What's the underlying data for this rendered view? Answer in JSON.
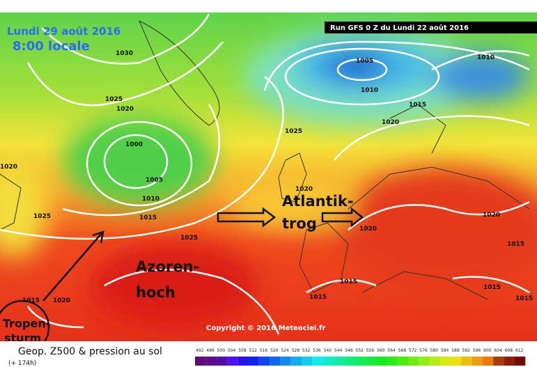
{
  "header": {
    "date": "Lundi 29 août 2016",
    "time": "8:00 locale",
    "run": "Run GFS 0 Z du Lundi 22 août 2016"
  },
  "isobars": [
    "1030",
    "1025",
    "1020",
    "1000",
    "1005",
    "1010",
    "1015",
    "1025",
    "1020",
    "1025",
    "1015",
    "1020",
    "1005",
    "1010",
    "1010",
    "1015",
    "1020",
    "1025",
    "1020",
    "1020",
    "1020",
    "1015",
    "1015",
    "1015",
    "1015",
    "1015"
  ],
  "annotations": {
    "trough_1": "Atlantik-",
    "trough_2": "trog",
    "high_1": "Azoren-",
    "high_2": "hoch",
    "storm_1": "Tropen-",
    "storm_2": "sturm"
  },
  "copyright": "Copyright © 2016 Meteociel.fr",
  "legend": {
    "title": "Geop. Z500 & pression au sol",
    "lead": "(+ 174h)",
    "scale": [
      "492",
      "496",
      "500",
      "504",
      "508",
      "512",
      "516",
      "520",
      "524",
      "528",
      "532",
      "536",
      "540",
      "544",
      "548",
      "552",
      "556",
      "560",
      "564",
      "568",
      "572",
      "576",
      "580",
      "584",
      "588",
      "592",
      "596",
      "600",
      "604",
      "608",
      "612"
    ]
  }
}
